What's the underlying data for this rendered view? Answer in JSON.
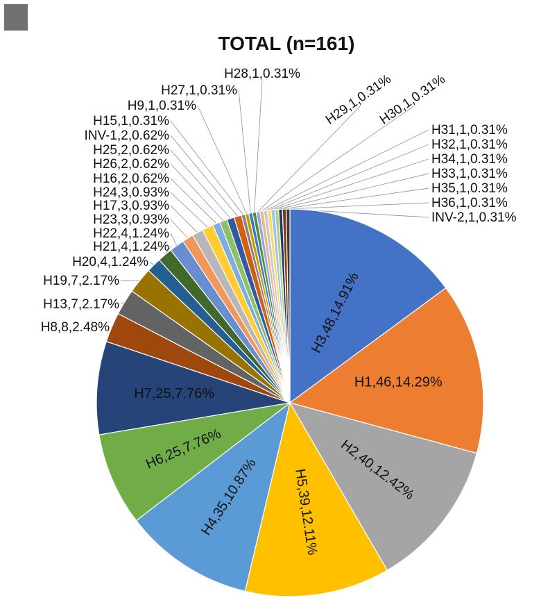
{
  "chart_data": {
    "type": "pie",
    "title": "TOTAL (n=161)",
    "slices": [
      {
        "label": "H3,48,14.91%",
        "name": "H3",
        "count": 48,
        "percent": 14.91,
        "color": "#4472C4"
      },
      {
        "label": "H1,46,14.29%",
        "name": "H1",
        "count": 46,
        "percent": 14.29,
        "color": "#ED7D31"
      },
      {
        "label": "H2,40,12.42%",
        "name": "H2",
        "count": 40,
        "percent": 12.42,
        "color": "#A5A5A5"
      },
      {
        "label": "H5,39,12.11%",
        "name": "H5",
        "count": 39,
        "percent": 12.11,
        "color": "#FFC000"
      },
      {
        "label": "H4,35,10.87%",
        "name": "H4",
        "count": 35,
        "percent": 10.87,
        "color": "#5B9BD5"
      },
      {
        "label": "H6,25,7.76%",
        "name": "H6",
        "count": 25,
        "percent": 7.76,
        "color": "#70AD47"
      },
      {
        "label": "H7,25,7.76%",
        "name": "H7",
        "count": 25,
        "percent": 7.76,
        "color": "#264478"
      },
      {
        "label": "H8,8,2.48%",
        "name": "H8",
        "count": 8,
        "percent": 2.48,
        "color": "#9E480E"
      },
      {
        "label": "H13,7,2.17%",
        "name": "H13",
        "count": 7,
        "percent": 2.17,
        "color": "#636363"
      },
      {
        "label": "H19,7,2.17%",
        "name": "H19",
        "count": 7,
        "percent": 2.17,
        "color": "#997300"
      },
      {
        "label": "H20,4,1.24%",
        "name": "H20",
        "count": 4,
        "percent": 1.24,
        "color": "#255E91"
      },
      {
        "label": "H21,4,1.24%",
        "name": "H21",
        "count": 4,
        "percent": 1.24,
        "color": "#43682B"
      },
      {
        "label": "H22,4,1.24%",
        "name": "H22",
        "count": 4,
        "percent": 1.24,
        "color": "#698ED0"
      },
      {
        "label": "H23,3,0.93%",
        "name": "H23",
        "count": 3,
        "percent": 0.93,
        "color": "#F1975A"
      },
      {
        "label": "H17,3,0.93%",
        "name": "H17",
        "count": 3,
        "percent": 0.93,
        "color": "#B7B7B7"
      },
      {
        "label": "H24,3,0.93%",
        "name": "H24",
        "count": 3,
        "percent": 0.93,
        "color": "#FFCD33"
      },
      {
        "label": "H16,2,0.62%",
        "name": "H16",
        "count": 2,
        "percent": 0.62,
        "color": "#7CAFDD"
      },
      {
        "label": "H26,2,0.62%",
        "name": "H26",
        "count": 2,
        "percent": 0.62,
        "color": "#8CC168"
      },
      {
        "label": "H25,2,0.62%",
        "name": "H25",
        "count": 2,
        "percent": 0.62,
        "color": "#335AA1"
      },
      {
        "label": "INV-1,2,0.62%",
        "name": "INV-1",
        "count": 2,
        "percent": 0.62,
        "color": "#D26012"
      },
      {
        "label": "H15,1,0.31%",
        "name": "H15",
        "count": 1,
        "percent": 0.31,
        "color": "#848484"
      },
      {
        "label": "H9,1,0.31%",
        "name": "H9",
        "count": 1,
        "percent": 0.31,
        "color": "#CC9A00"
      },
      {
        "label": "H27,1,0.31%",
        "name": "H27",
        "count": 1,
        "percent": 0.31,
        "color": "#327DC2"
      },
      {
        "label": "H28,1,0.31%",
        "name": "H28",
        "count": 1,
        "percent": 0.31,
        "color": "#5A8A39"
      },
      {
        "label": "H29,1,0.31%",
        "name": "H29",
        "count": 1,
        "percent": 0.31,
        "color": "#8FAADC"
      },
      {
        "label": "H30,1,0.31%",
        "name": "H30",
        "count": 1,
        "percent": 0.31,
        "color": "#F4B183"
      },
      {
        "label": "H31,1,0.31%",
        "name": "H31",
        "count": 1,
        "percent": 0.31,
        "color": "#C9C9C9"
      },
      {
        "label": "H32,1,0.31%",
        "name": "H32",
        "count": 1,
        "percent": 0.31,
        "color": "#FFD966"
      },
      {
        "label": "H34,1,0.31%",
        "name": "H34",
        "count": 1,
        "percent": 0.31,
        "color": "#9DC3E6"
      },
      {
        "label": "H33,1,0.31%",
        "name": "H33",
        "count": 1,
        "percent": 0.31,
        "color": "#A9D18E"
      },
      {
        "label": "H35,1,0.31%",
        "name": "H35",
        "count": 1,
        "percent": 0.31,
        "color": "#1F3864"
      },
      {
        "label": "H36,1,0.31%",
        "name": "H36",
        "count": 1,
        "percent": 0.31,
        "color": "#843C0C"
      },
      {
        "label": "INV-2,1,0.31%",
        "name": "INV-2",
        "count": 1,
        "percent": 0.31,
        "color": "#3A3A3A"
      }
    ]
  }
}
